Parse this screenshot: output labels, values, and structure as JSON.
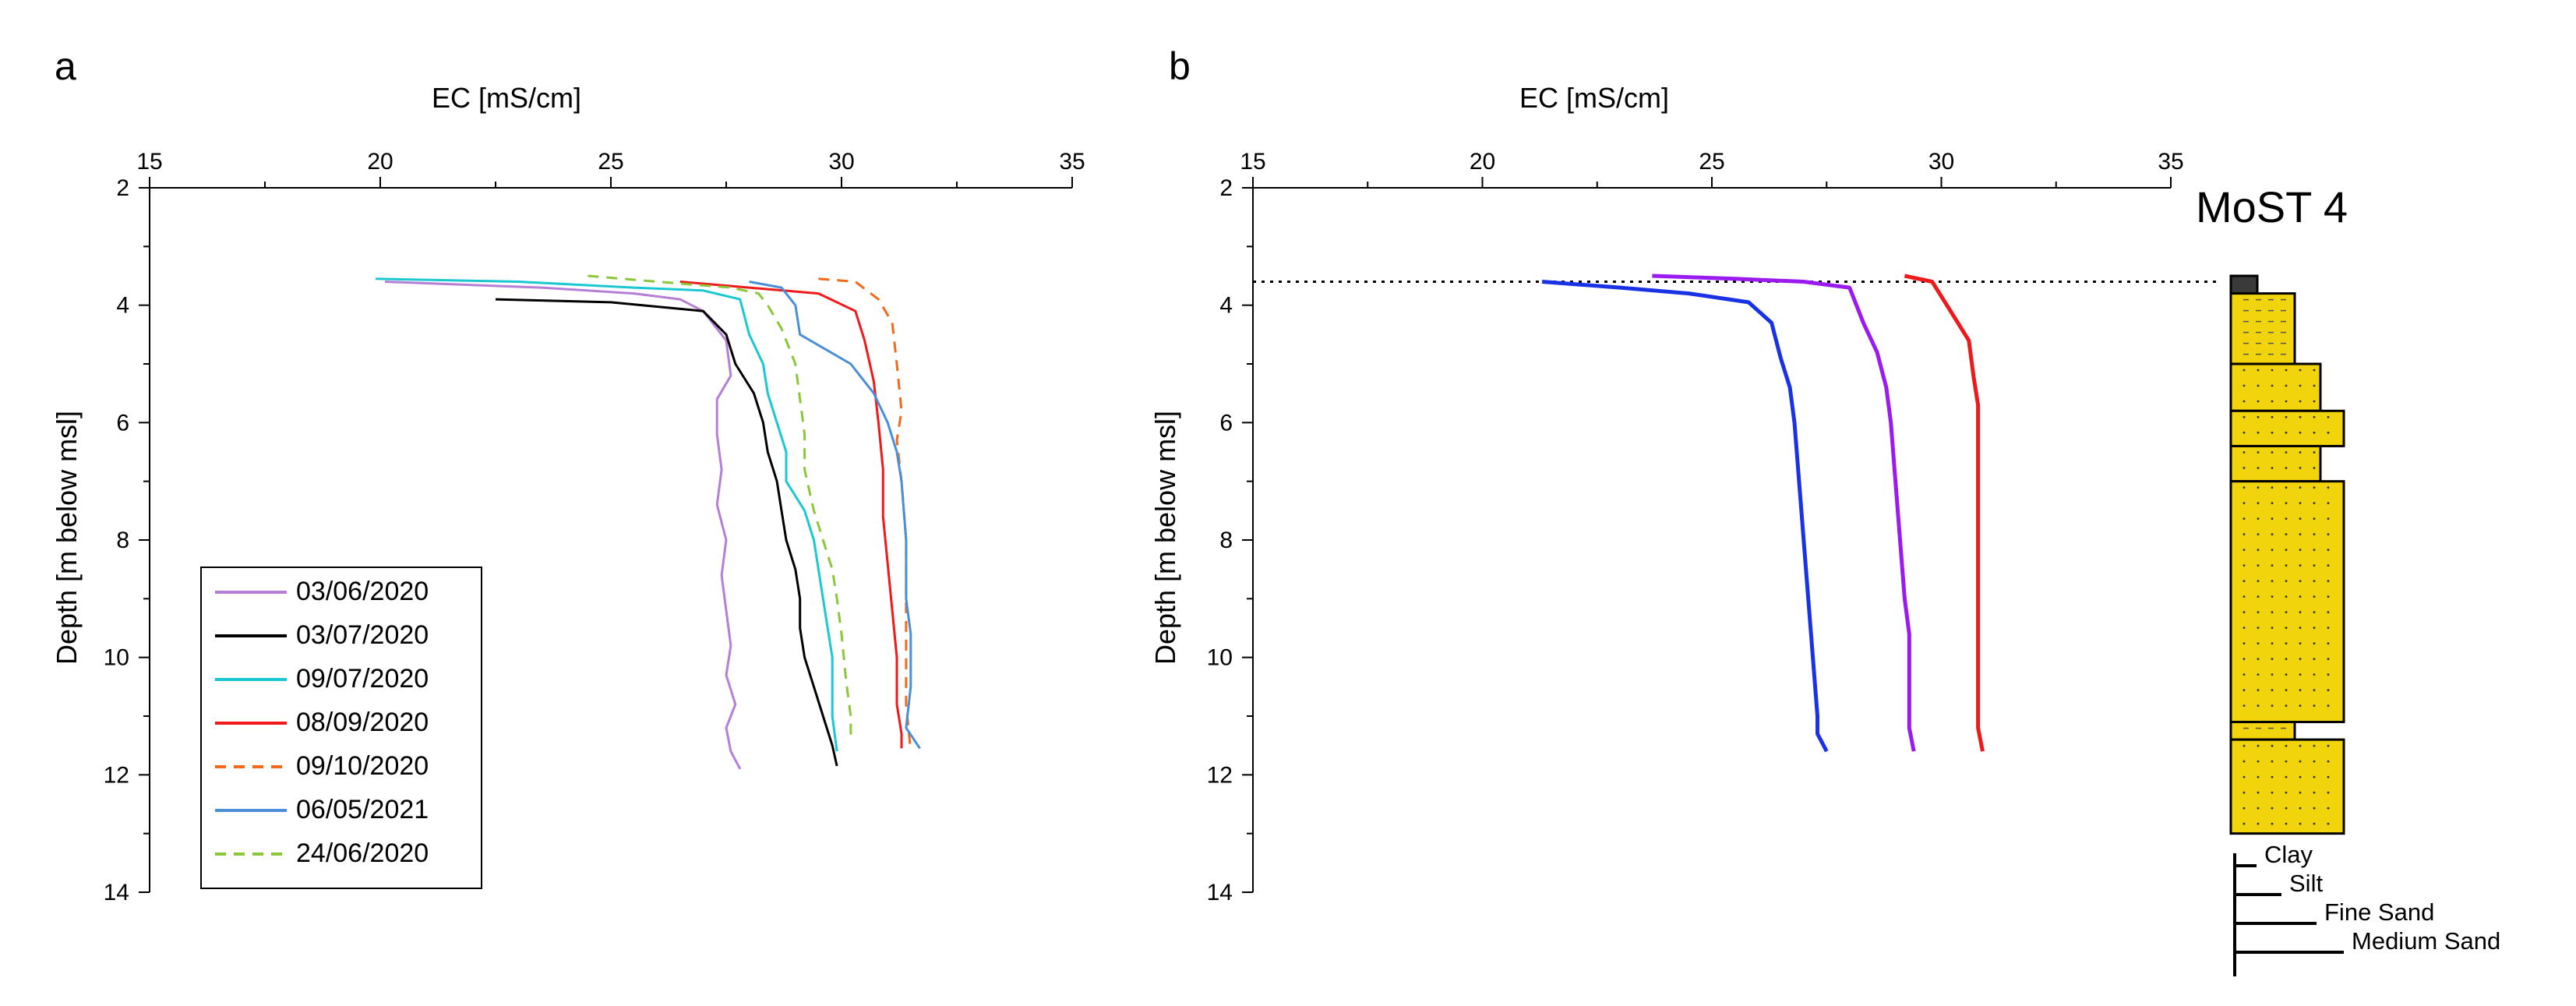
{
  "chart_data": [
    {
      "panel": "a",
      "type": "line",
      "xlabel": "EC [mS/cm]",
      "ylabel": "Depth [m below msl]",
      "xlim": [
        15,
        35
      ],
      "ylim": [
        2,
        14
      ],
      "x_axis_position": "top",
      "y_inverted": true,
      "xticks": [
        15,
        20,
        25,
        30,
        35
      ],
      "yticks": [
        2,
        4,
        6,
        8,
        10,
        12,
        14
      ],
      "legend_position": "bottom-left",
      "series": [
        {
          "name": "03/06/2020",
          "color": "#b57fd6",
          "dash": "solid",
          "points": [
            [
              20.1,
              3.6
            ],
            [
              23.5,
              3.7
            ],
            [
              25.5,
              3.8
            ],
            [
              26.5,
              3.9
            ],
            [
              27.0,
              4.1
            ],
            [
              27.5,
              4.6
            ],
            [
              27.6,
              5.2
            ],
            [
              27.3,
              5.6
            ],
            [
              27.3,
              6.2
            ],
            [
              27.4,
              6.8
            ],
            [
              27.3,
              7.4
            ],
            [
              27.5,
              8.0
            ],
            [
              27.4,
              8.6
            ],
            [
              27.5,
              9.2
            ],
            [
              27.6,
              9.8
            ],
            [
              27.5,
              10.3
            ],
            [
              27.7,
              10.8
            ],
            [
              27.5,
              11.2
            ],
            [
              27.6,
              11.6
            ],
            [
              27.8,
              11.9
            ]
          ]
        },
        {
          "name": "03/07/2020",
          "color": "#000000",
          "dash": "solid",
          "points": [
            [
              22.5,
              3.9
            ],
            [
              25.0,
              3.95
            ],
            [
              27.0,
              4.1
            ],
            [
              27.5,
              4.5
            ],
            [
              27.7,
              5.0
            ],
            [
              28.1,
              5.5
            ],
            [
              28.3,
              6.0
            ],
            [
              28.4,
              6.5
            ],
            [
              28.6,
              7.0
            ],
            [
              28.7,
              7.5
            ],
            [
              28.8,
              8.0
            ],
            [
              29.0,
              8.5
            ],
            [
              29.1,
              9.0
            ],
            [
              29.1,
              9.5
            ],
            [
              29.2,
              10.0
            ],
            [
              29.4,
              10.5
            ],
            [
              29.6,
              11.0
            ],
            [
              29.8,
              11.5
            ],
            [
              29.9,
              11.85
            ]
          ]
        },
        {
          "name": "09/07/2020",
          "color": "#19c8d0",
          "dash": "solid",
          "points": [
            [
              19.9,
              3.55
            ],
            [
              23.0,
              3.6
            ],
            [
              25.5,
              3.7
            ],
            [
              27.0,
              3.75
            ],
            [
              27.8,
              3.9
            ],
            [
              28.0,
              4.5
            ],
            [
              28.3,
              5.0
            ],
            [
              28.4,
              5.5
            ],
            [
              28.6,
              6.0
            ],
            [
              28.8,
              6.5
            ],
            [
              28.8,
              7.0
            ],
            [
              29.2,
              7.5
            ],
            [
              29.4,
              8.0
            ],
            [
              29.5,
              8.5
            ],
            [
              29.6,
              9.0
            ],
            [
              29.7,
              9.5
            ],
            [
              29.8,
              10.0
            ],
            [
              29.8,
              10.5
            ],
            [
              29.8,
              11.0
            ],
            [
              29.9,
              11.6
            ]
          ]
        },
        {
          "name": "08/09/2020",
          "color": "#f01818",
          "dash": "solid",
          "points": [
            [
              26.5,
              3.6
            ],
            [
              28.0,
              3.7
            ],
            [
              29.5,
              3.8
            ],
            [
              30.3,
              4.1
            ],
            [
              30.5,
              4.6
            ],
            [
              30.7,
              5.3
            ],
            [
              30.8,
              6.0
            ],
            [
              30.9,
              6.8
            ],
            [
              30.9,
              7.6
            ],
            [
              31.0,
              8.4
            ],
            [
              31.1,
              9.2
            ],
            [
              31.2,
              10.0
            ],
            [
              31.2,
              10.8
            ],
            [
              31.3,
              11.3
            ],
            [
              31.3,
              11.55
            ]
          ]
        },
        {
          "name": "09/10/2020",
          "color": "#f06a1a",
          "dash": "dashed",
          "points": [
            [
              29.5,
              3.55
            ],
            [
              30.3,
              3.6
            ],
            [
              30.8,
              3.9
            ],
            [
              31.1,
              4.3
            ],
            [
              31.2,
              5.0
            ],
            [
              31.3,
              5.8
            ],
            [
              31.2,
              6.3
            ],
            [
              31.3,
              7.0
            ],
            [
              31.4,
              8.0
            ],
            [
              31.4,
              9.0
            ],
            [
              31.4,
              10.0
            ],
            [
              31.4,
              10.8
            ],
            [
              31.5,
              11.6
            ]
          ]
        },
        {
          "name": "06/05/2021",
          "color": "#4a8ed8",
          "dash": "solid",
          "points": [
            [
              28.0,
              3.6
            ],
            [
              28.7,
              3.7
            ],
            [
              29.0,
              4.0
            ],
            [
              29.1,
              4.5
            ],
            [
              30.2,
              5.0
            ],
            [
              30.7,
              5.5
            ],
            [
              31.0,
              6.0
            ],
            [
              31.2,
              6.5
            ],
            [
              31.3,
              7.0
            ],
            [
              31.4,
              8.0
            ],
            [
              31.4,
              9.0
            ],
            [
              31.5,
              9.6
            ],
            [
              31.5,
              10.5
            ],
            [
              31.4,
              11.2
            ],
            [
              31.7,
              11.55
            ]
          ]
        },
        {
          "name": "24/06/2020",
          "color": "#8ac83a",
          "dash": "dashed",
          "points": [
            [
              24.5,
              3.5
            ],
            [
              26.0,
              3.6
            ],
            [
              27.6,
              3.7
            ],
            [
              28.2,
              3.8
            ],
            [
              28.4,
              4.0
            ],
            [
              28.7,
              4.4
            ],
            [
              29.0,
              5.0
            ],
            [
              29.1,
              5.6
            ],
            [
              29.2,
              6.2
            ],
            [
              29.2,
              6.8
            ],
            [
              29.4,
              7.5
            ],
            [
              29.6,
              8.0
            ],
            [
              29.8,
              8.5
            ],
            [
              29.9,
              9.0
            ],
            [
              30.0,
              9.6
            ],
            [
              30.1,
              10.4
            ],
            [
              30.2,
              11.0
            ],
            [
              30.2,
              11.4
            ]
          ]
        }
      ],
      "legend_order": [
        "03/06/2020",
        "03/07/2020",
        "09/07/2020",
        "08/09/2020",
        "09/10/2020",
        "06/05/2021",
        "24/06/2020"
      ]
    },
    {
      "panel": "b",
      "type": "line",
      "xlabel": "EC [mS/cm]",
      "ylabel": "Depth [m below msl]",
      "xlim": [
        15,
        35
      ],
      "ylim": [
        2,
        14
      ],
      "x_axis_position": "top",
      "y_inverted": true,
      "xticks": [
        15,
        20,
        25,
        30,
        35
      ],
      "yticks": [
        2,
        4,
        6,
        8,
        10,
        12,
        14
      ],
      "water_table_depth": 3.6,
      "series": [
        {
          "name": "blue",
          "color": "#1a32e6",
          "dash": "solid",
          "points": [
            [
              21.3,
              3.6
            ],
            [
              23.0,
              3.7
            ],
            [
              24.5,
              3.8
            ],
            [
              25.8,
              3.95
            ],
            [
              26.3,
              4.3
            ],
            [
              26.5,
              4.9
            ],
            [
              26.7,
              5.4
            ],
            [
              26.8,
              6.0
            ],
            [
              26.9,
              7.0
            ],
            [
              27.0,
              8.0
            ],
            [
              27.1,
              9.0
            ],
            [
              27.2,
              10.0
            ],
            [
              27.3,
              11.0
            ],
            [
              27.3,
              11.3
            ],
            [
              27.5,
              11.6
            ]
          ]
        },
        {
          "name": "purple",
          "color": "#9a1af0",
          "dash": "solid",
          "points": [
            [
              23.7,
              3.5
            ],
            [
              25.5,
              3.55
            ],
            [
              27.0,
              3.6
            ],
            [
              28.0,
              3.7
            ],
            [
              28.3,
              4.3
            ],
            [
              28.6,
              4.8
            ],
            [
              28.8,
              5.4
            ],
            [
              28.9,
              6.0
            ],
            [
              29.0,
              7.0
            ],
            [
              29.1,
              8.0
            ],
            [
              29.2,
              9.0
            ],
            [
              29.3,
              9.6
            ],
            [
              29.3,
              10.5
            ],
            [
              29.3,
              11.2
            ],
            [
              29.4,
              11.6
            ]
          ]
        },
        {
          "name": "red",
          "color": "#ec1a1a",
          "dash": "solid",
          "points": [
            [
              29.2,
              3.5
            ],
            [
              29.8,
              3.6
            ],
            [
              30.2,
              4.1
            ],
            [
              30.6,
              4.6
            ],
            [
              30.7,
              5.2
            ],
            [
              30.8,
              5.7
            ],
            [
              30.8,
              6.5
            ],
            [
              30.8,
              7.5
            ],
            [
              30.8,
              8.5
            ],
            [
              30.8,
              9.5
            ],
            [
              30.8,
              10.5
            ],
            [
              30.8,
              11.2
            ],
            [
              30.9,
              11.6
            ]
          ]
        }
      ]
    }
  ],
  "panel_labels": {
    "a": "a",
    "b": "b"
  },
  "core": {
    "title": "MoST 4",
    "colors": {
      "sand": "#f2d40c",
      "dark": "#3a3a3a"
    },
    "sediment_legend": [
      "Clay",
      "Silt",
      "Fine Sand",
      "Medium Sand"
    ],
    "units": [
      {
        "top": 3.5,
        "bottom": 3.8,
        "grain": "clay"
      },
      {
        "top": 3.8,
        "bottom": 5.0,
        "grain": "silt"
      },
      {
        "top": 5.0,
        "bottom": 5.8,
        "grain": "fine"
      },
      {
        "top": 5.8,
        "bottom": 6.4,
        "grain": "medium"
      },
      {
        "top": 6.4,
        "bottom": 7.0,
        "grain": "fine"
      },
      {
        "top": 7.0,
        "bottom": 11.1,
        "grain": "medium"
      },
      {
        "top": 11.1,
        "bottom": 11.4,
        "grain": "silt"
      },
      {
        "top": 11.4,
        "bottom": 13.0,
        "grain": "medium"
      }
    ]
  }
}
